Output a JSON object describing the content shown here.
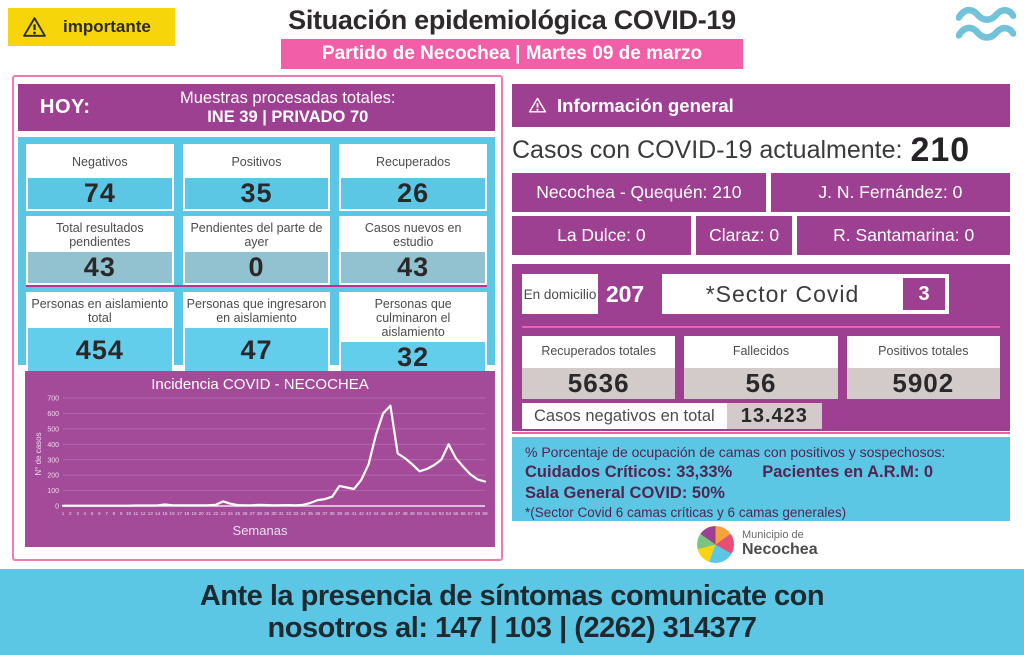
{
  "header": {
    "badge": "importante",
    "title": "Situación epidemiológica COVID-19",
    "subtitle": "Partido de Necochea |  Martes 09 de marzo"
  },
  "today": {
    "label": "HOY:",
    "samples_line1": "Muestras procesadas totales:",
    "samples_line2": "INE 39 | PRIVADO 70",
    "cells": [
      {
        "label": "Negativos",
        "value": "74"
      },
      {
        "label": "Positivos",
        "value": "35"
      },
      {
        "label": "Recuperados",
        "value": "26"
      },
      {
        "label": "Total resultados pendientes",
        "value": "43"
      },
      {
        "label": "Pendientes del parte de ayer",
        "value": "0"
      },
      {
        "label": "Casos nuevos en estudio",
        "value": "43"
      },
      {
        "label": "Personas en aislamiento total",
        "value": "454"
      },
      {
        "label": "Personas que ingresaron en aislamiento",
        "value": "47"
      },
      {
        "label": "Personas que culminaron el aislamiento",
        "value": "32"
      }
    ]
  },
  "chart_data": {
    "type": "line",
    "title": "Incidencia COVID - NECOCHEA",
    "xlabel": "Semanas",
    "ylabel": "N° de casos",
    "ylim": [
      0,
      700
    ],
    "ytick_step": 100,
    "grid": true,
    "x": [
      1,
      2,
      3,
      4,
      5,
      6,
      7,
      8,
      9,
      10,
      11,
      12,
      13,
      14,
      15,
      16,
      17,
      18,
      19,
      20,
      21,
      22,
      23,
      24,
      25,
      26,
      27,
      28,
      29,
      30,
      31,
      32,
      33,
      34,
      35,
      36,
      37,
      38,
      39,
      40,
      41,
      42,
      43,
      44,
      45,
      46,
      47,
      48,
      49,
      50,
      51,
      52,
      53,
      54,
      55,
      56,
      57,
      58,
      59
    ],
    "values": [
      2,
      2,
      2,
      2,
      2,
      2,
      2,
      2,
      2,
      2,
      3,
      3,
      3,
      4,
      10,
      5,
      4,
      4,
      4,
      4,
      5,
      8,
      30,
      15,
      6,
      4,
      5,
      8,
      6,
      4,
      5,
      6,
      4,
      8,
      20,
      38,
      45,
      60,
      130,
      120,
      110,
      170,
      270,
      460,
      600,
      650,
      340,
      310,
      270,
      225,
      240,
      265,
      300,
      400,
      310,
      255,
      205,
      172,
      158
    ]
  },
  "general": {
    "header": "Información general",
    "current_label": "Casos con COVID-19 actualmente:",
    "current_value": "210",
    "localities1": [
      "Necochea - Quequén: 210",
      "J. N. Fernández: 0"
    ],
    "localities2": [
      "La Dulce: 0",
      "Claraz: 0",
      "R. Santamarina: 0"
    ],
    "domicilio_label": "En domicilio",
    "domicilio_value": "207",
    "sector_label": "*Sector Covid",
    "sector_value": "3",
    "totals": [
      {
        "label": "Recuperados totales",
        "value": "5636"
      },
      {
        "label": "Fallecidos",
        "value": "56"
      },
      {
        "label": "Positivos totales",
        "value": "5902"
      }
    ],
    "negativos_label": "Casos negativos en total",
    "negativos_value": "13.423",
    "beds": {
      "line1": "% Porcentaje de ocupación de camas con positivos y sospechosos:",
      "line2a": "Cuidados Críticos: 33,33%",
      "line2b": "Pacientes en A.R.M: 0",
      "line3": "Sala General COVID: 50%",
      "line4": "*(Sector Covid 6 camas críticas y  6 camas generales)"
    }
  },
  "logo": {
    "line1": "Municipio de",
    "line2": "Necochea"
  },
  "footer": {
    "line1": "Ante la presencia de síntomas comunicate con",
    "line2": "nosotros al: 147 | 103 | (2262) 314377"
  },
  "colors": {
    "purple": "#9e4092",
    "chart_purple": "#a34b99",
    "cyan": "#5cc7e5",
    "pink": "#f25fa8",
    "yellow": "#f6d60b",
    "dark": "#2e2a2c",
    "gray_cell": "#d3cbca",
    "muted_cyan": "#92c2cf"
  }
}
